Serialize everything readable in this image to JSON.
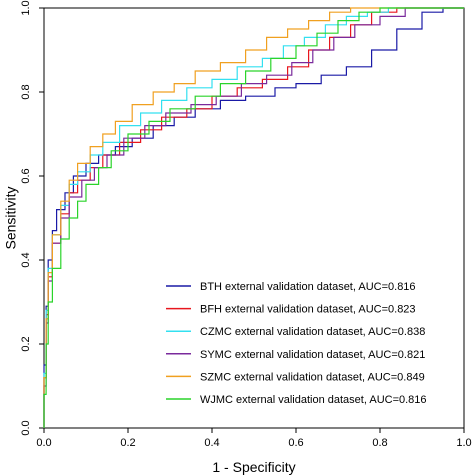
{
  "chart_data": {
    "type": "line",
    "title": "",
    "xlabel": "1 - Specificity",
    "ylabel": "Sensitivity",
    "xlim": [
      0,
      1
    ],
    "ylim": [
      0,
      1
    ],
    "xticks": [
      "0.0",
      "0.2",
      "0.4",
      "0.6",
      "0.8",
      "1.0"
    ],
    "yticks": [
      "0.0",
      "0.2",
      "0.4",
      "0.6",
      "0.8",
      "1.0"
    ],
    "grid": false,
    "legend_position": "bottom-right",
    "series": [
      {
        "name": "BTH external validation dataset, AUC=0.816",
        "color": "#1a1aa6",
        "x": [
          0,
          0,
          0.005,
          0.01,
          0.02,
          0.03,
          0.05,
          0.07,
          0.1,
          0.13,
          0.17,
          0.21,
          0.26,
          0.31,
          0.36,
          0.42,
          0.48,
          0.55,
          0.6,
          0.66,
          0.72,
          0.78,
          0.84,
          0.9,
          0.95,
          1.0
        ],
        "y": [
          0,
          0.15,
          0.29,
          0.4,
          0.47,
          0.52,
          0.56,
          0.6,
          0.63,
          0.65,
          0.67,
          0.69,
          0.72,
          0.74,
          0.76,
          0.78,
          0.79,
          0.81,
          0.82,
          0.84,
          0.86,
          0.9,
          0.95,
          0.99,
          1.0,
          1.0
        ]
      },
      {
        "name": "BFH external validation dataset, AUC=0.823",
        "color": "#e8161e",
        "x": [
          0,
          0,
          0.005,
          0.01,
          0.02,
          0.04,
          0.06,
          0.08,
          0.11,
          0.14,
          0.18,
          0.23,
          0.28,
          0.34,
          0.4,
          0.46,
          0.52,
          0.58,
          0.63,
          0.68,
          0.73,
          0.78,
          0.84,
          0.9,
          1.0
        ],
        "y": [
          0,
          0.12,
          0.27,
          0.36,
          0.44,
          0.51,
          0.56,
          0.59,
          0.62,
          0.65,
          0.68,
          0.71,
          0.74,
          0.76,
          0.79,
          0.81,
          0.83,
          0.86,
          0.9,
          0.93,
          0.96,
          0.99,
          1.0,
          1.0,
          1.0
        ]
      },
      {
        "name": "CZMC external validation dataset, AUC=0.838",
        "color": "#33e0f0",
        "x": [
          0,
          0,
          0.005,
          0.01,
          0.02,
          0.04,
          0.06,
          0.08,
          0.11,
          0.14,
          0.18,
          0.23,
          0.28,
          0.34,
          0.4,
          0.46,
          0.52,
          0.57,
          0.62,
          0.67,
          0.72,
          0.77,
          0.82,
          0.88,
          1.0
        ],
        "y": [
          0,
          0.13,
          0.28,
          0.38,
          0.46,
          0.53,
          0.58,
          0.61,
          0.65,
          0.68,
          0.72,
          0.75,
          0.78,
          0.81,
          0.83,
          0.86,
          0.88,
          0.91,
          0.93,
          0.96,
          0.98,
          0.99,
          1.0,
          1.0,
          1.0
        ]
      },
      {
        "name": "SYMC external validation dataset, AUC=0.821",
        "color": "#7a2a9c",
        "x": [
          0,
          0,
          0.005,
          0.01,
          0.02,
          0.04,
          0.06,
          0.09,
          0.12,
          0.15,
          0.19,
          0.24,
          0.29,
          0.35,
          0.41,
          0.47,
          0.53,
          0.59,
          0.64,
          0.69,
          0.74,
          0.8,
          0.86,
          0.92,
          1.0
        ],
        "y": [
          0,
          0.1,
          0.25,
          0.35,
          0.44,
          0.5,
          0.55,
          0.59,
          0.62,
          0.65,
          0.69,
          0.72,
          0.75,
          0.77,
          0.79,
          0.82,
          0.84,
          0.87,
          0.9,
          0.93,
          0.96,
          0.98,
          1.0,
          1.0,
          1.0
        ]
      },
      {
        "name": "SZMC external validation dataset, AUC=0.849",
        "color": "#f0a020",
        "x": [
          0,
          0,
          0.005,
          0.01,
          0.02,
          0.04,
          0.06,
          0.08,
          0.11,
          0.14,
          0.17,
          0.21,
          0.26,
          0.31,
          0.36,
          0.42,
          0.48,
          0.53,
          0.58,
          0.63,
          0.68,
          0.73,
          0.79,
          0.85,
          1.0
        ],
        "y": [
          0,
          0.12,
          0.26,
          0.37,
          0.46,
          0.54,
          0.59,
          0.63,
          0.67,
          0.7,
          0.73,
          0.77,
          0.8,
          0.82,
          0.85,
          0.87,
          0.9,
          0.93,
          0.95,
          0.97,
          0.99,
          1.0,
          1.0,
          1.0,
          1.0
        ]
      },
      {
        "name": "WJMC external validation dataset, AUC=0.816",
        "color": "#2ad42a",
        "x": [
          0,
          0,
          0.005,
          0.01,
          0.02,
          0.04,
          0.06,
          0.08,
          0.1,
          0.13,
          0.16,
          0.2,
          0.25,
          0.3,
          0.36,
          0.42,
          0.48,
          0.54,
          0.6,
          0.65,
          0.7,
          0.75,
          0.8,
          0.86,
          1.0
        ],
        "y": [
          0,
          0.08,
          0.2,
          0.3,
          0.38,
          0.45,
          0.5,
          0.54,
          0.58,
          0.62,
          0.66,
          0.7,
          0.73,
          0.76,
          0.79,
          0.82,
          0.85,
          0.88,
          0.91,
          0.94,
          0.97,
          0.99,
          1.0,
          1.0,
          1.0
        ]
      }
    ]
  }
}
